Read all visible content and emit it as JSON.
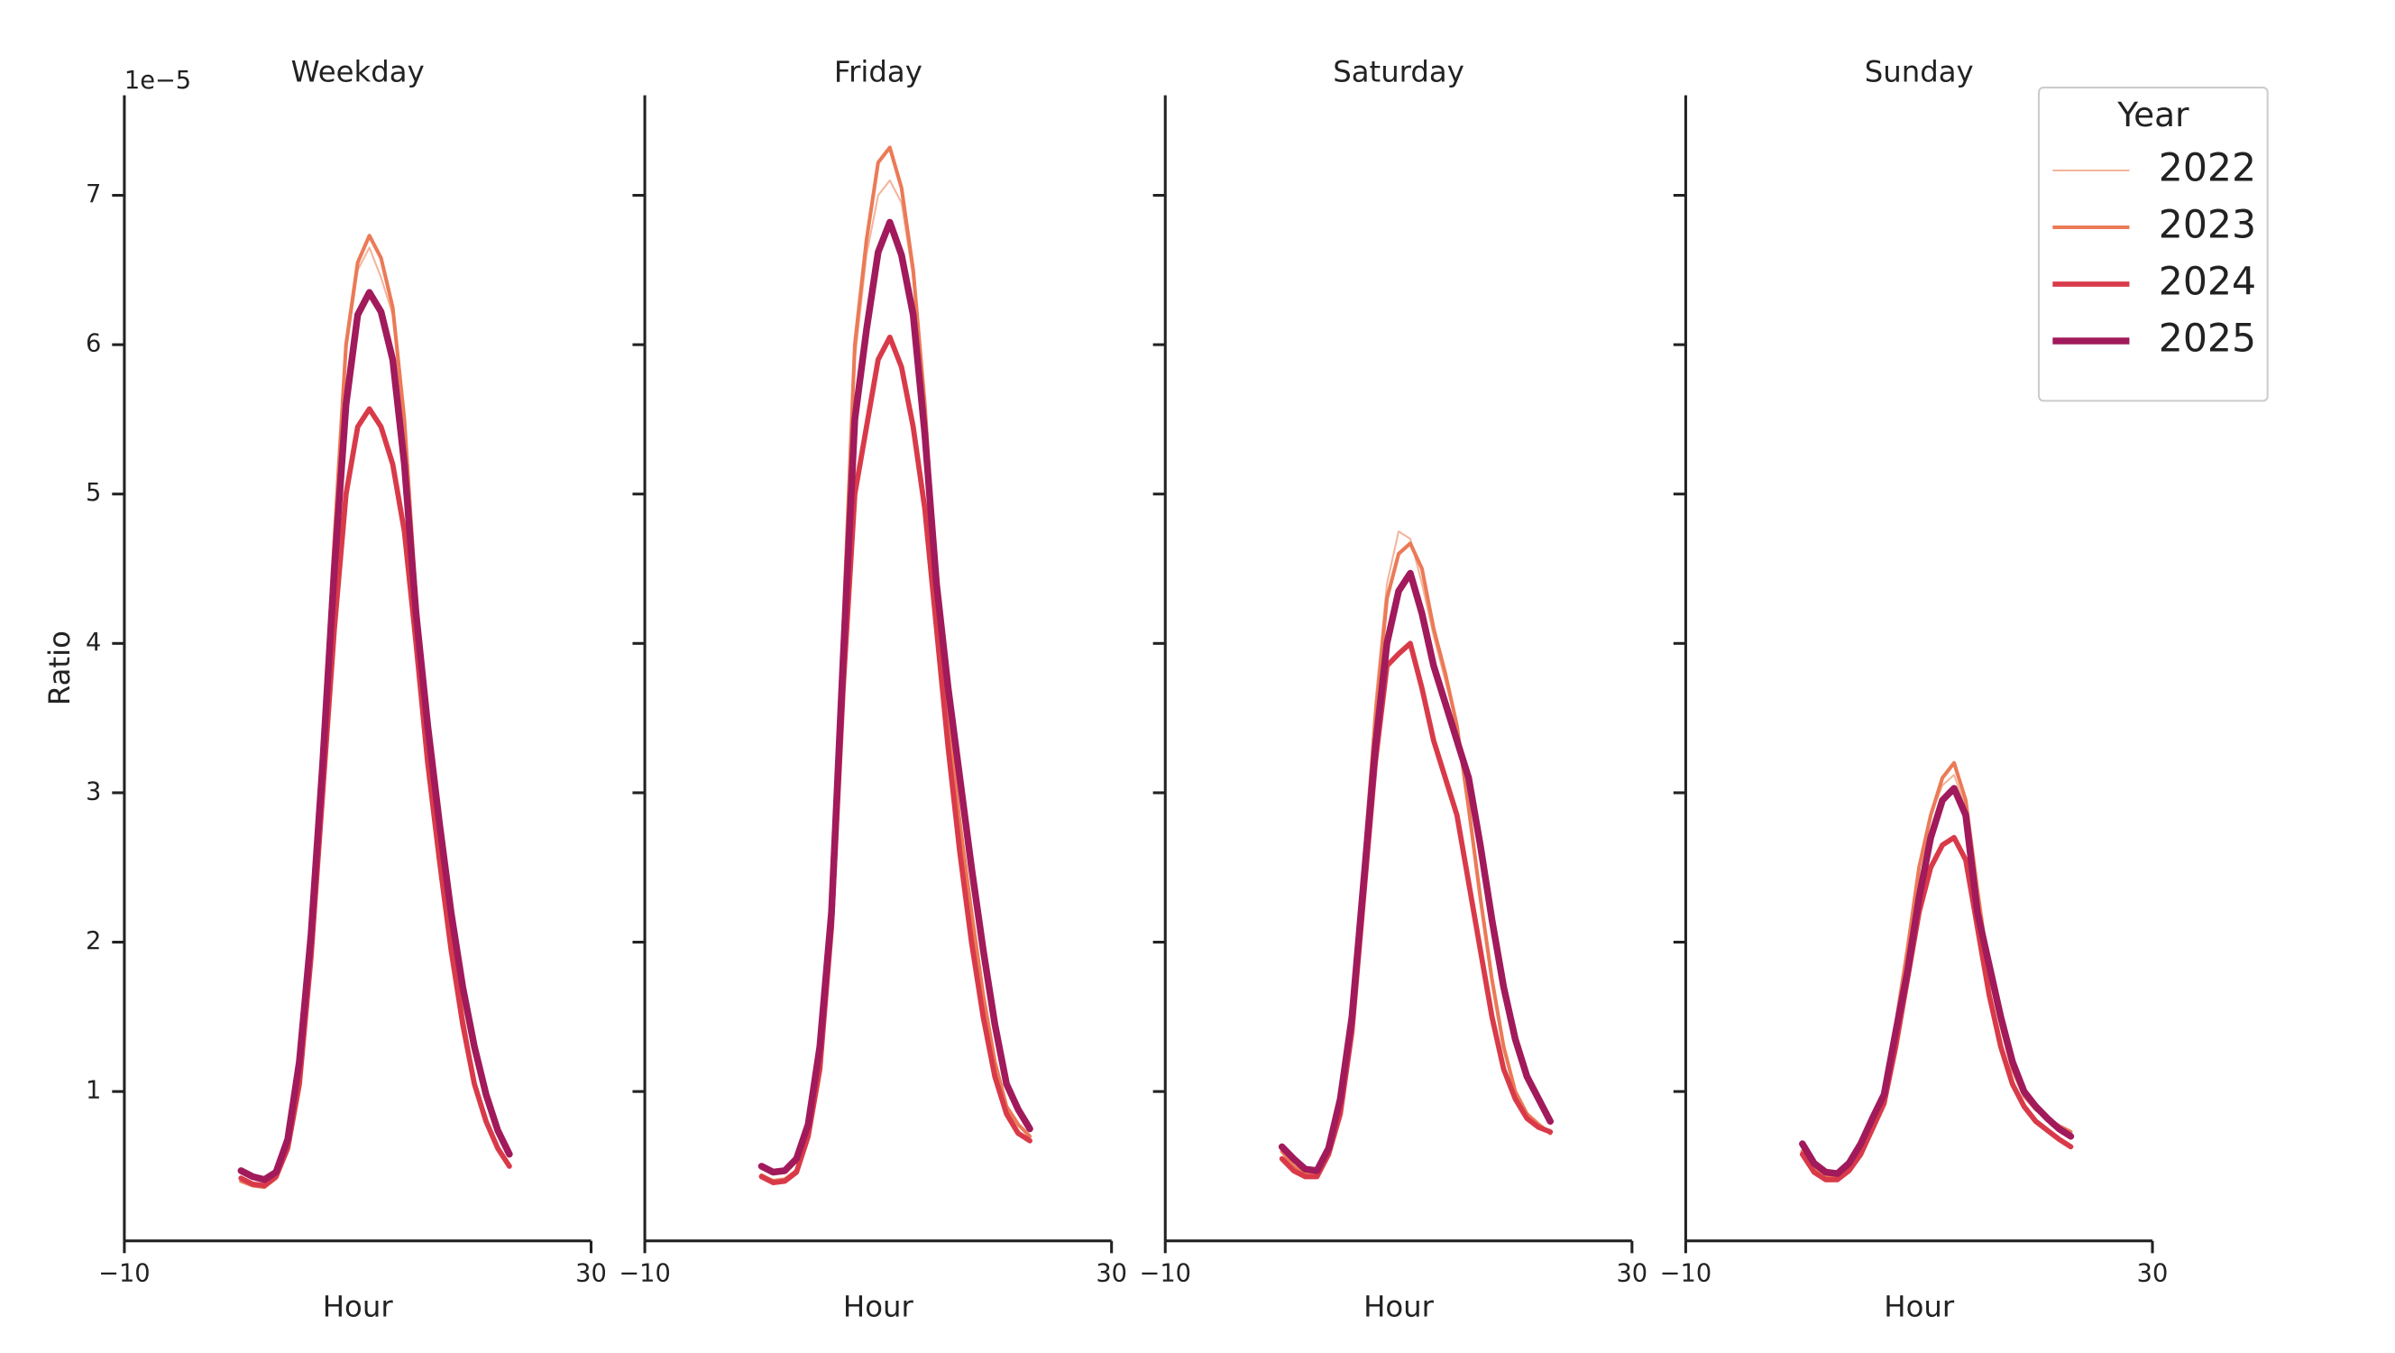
{
  "chart_data": [
    {
      "type": "line",
      "title": "Weekday",
      "xlabel": "Hour",
      "ylabel": "Ratio",
      "offset_text": "1e−5",
      "x": [
        0,
        1,
        2,
        3,
        4,
        5,
        6,
        7,
        8,
        9,
        10,
        11,
        12,
        13,
        14,
        15,
        16,
        17,
        18,
        19,
        20,
        21,
        22,
        23
      ],
      "xlim": [
        -10,
        30
      ],
      "xticks": [
        {
          "value": -10,
          "label": "−10"
        },
        30
      ],
      "ylim": [
        0,
        7.67
      ],
      "yticks": [
        1,
        2,
        3,
        4,
        5,
        6,
        7
      ],
      "ytick_labels": true,
      "series": [
        {
          "color": "#f4b49c",
          "linewidth": 1.2,
          "values": [
            0.41,
            0.38,
            0.37,
            0.43,
            0.63,
            1.1,
            2.0,
            3.3,
            4.6,
            5.95,
            6.5,
            6.65,
            6.45,
            6.2,
            5.45,
            4.3,
            3.4,
            2.7,
            2.05,
            1.5,
            1.05,
            0.8,
            0.62,
            0.5
          ]
        },
        {
          "color": "#eb7a57",
          "linewidth": 2.4,
          "values": [
            0.4,
            0.37,
            0.36,
            0.42,
            0.62,
            1.1,
            2.0,
            3.3,
            4.7,
            6.0,
            6.55,
            6.73,
            6.58,
            6.25,
            5.5,
            4.3,
            3.4,
            2.7,
            2.05,
            1.5,
            1.05,
            0.8,
            0.62,
            0.5
          ]
        },
        {
          "color": "#d93a49",
          "linewidth": 3.4,
          "values": [
            0.42,
            0.38,
            0.37,
            0.43,
            0.62,
            1.05,
            1.9,
            3.0,
            4.1,
            5.0,
            5.45,
            5.57,
            5.45,
            5.2,
            4.75,
            4.0,
            3.2,
            2.55,
            1.95,
            1.45,
            1.05,
            0.8,
            0.62,
            0.5
          ]
        },
        {
          "color": "#a11a5b",
          "linewidth": 4.4,
          "values": [
            0.47,
            0.43,
            0.41,
            0.46,
            0.68,
            1.2,
            2.05,
            3.2,
            4.5,
            5.6,
            6.2,
            6.35,
            6.22,
            5.9,
            5.2,
            4.2,
            3.45,
            2.8,
            2.2,
            1.7,
            1.3,
            0.98,
            0.74,
            0.58
          ]
        }
      ]
    },
    {
      "type": "line",
      "title": "Friday",
      "xlabel": "Hour",
      "x": [
        0,
        1,
        2,
        3,
        4,
        5,
        6,
        7,
        8,
        9,
        10,
        11,
        12,
        13,
        14,
        15,
        16,
        17,
        18,
        19,
        20,
        21,
        22,
        23
      ],
      "xlim": [
        -10,
        30
      ],
      "xticks": [
        {
          "value": -10,
          "label": "−10"
        },
        30
      ],
      "ylim": [
        0,
        7.67
      ],
      "yticks": [
        1,
        2,
        3,
        4,
        5,
        6,
        7
      ],
      "ytick_labels": false,
      "series": [
        {
          "color": "#f4b49c",
          "linewidth": 1.2,
          "values": [
            0.44,
            0.41,
            0.42,
            0.48,
            0.72,
            1.25,
            2.3,
            4.0,
            5.9,
            6.6,
            7.0,
            7.1,
            6.95,
            6.45,
            5.6,
            4.4,
            3.5,
            2.8,
            2.2,
            1.65,
            1.2,
            0.9,
            0.78,
            0.7
          ]
        },
        {
          "color": "#eb7a57",
          "linewidth": 2.4,
          "values": [
            0.44,
            0.4,
            0.41,
            0.47,
            0.72,
            1.25,
            2.3,
            4.1,
            6.0,
            6.7,
            7.22,
            7.32,
            7.05,
            6.5,
            5.6,
            4.4,
            3.5,
            2.8,
            2.2,
            1.65,
            1.2,
            0.9,
            0.78,
            0.7
          ]
        },
        {
          "color": "#d93a49",
          "linewidth": 3.4,
          "values": [
            0.43,
            0.39,
            0.4,
            0.46,
            0.7,
            1.15,
            2.1,
            3.7,
            5.0,
            5.45,
            5.9,
            6.05,
            5.85,
            5.45,
            4.9,
            4.1,
            3.3,
            2.6,
            2.0,
            1.5,
            1.1,
            0.85,
            0.72,
            0.67
          ]
        },
        {
          "color": "#a11a5b",
          "linewidth": 4.4,
          "values": [
            0.5,
            0.46,
            0.47,
            0.55,
            0.78,
            1.3,
            2.2,
            3.9,
            5.5,
            6.1,
            6.62,
            6.82,
            6.6,
            6.2,
            5.4,
            4.4,
            3.7,
            3.1,
            2.5,
            1.95,
            1.45,
            1.05,
            0.88,
            0.75
          ]
        }
      ]
    },
    {
      "type": "line",
      "title": "Saturday",
      "xlabel": "Hour",
      "x": [
        0,
        1,
        2,
        3,
        4,
        5,
        6,
        7,
        8,
        9,
        10,
        11,
        12,
        13,
        14,
        15,
        16,
        17,
        18,
        19,
        20,
        21,
        22,
        23
      ],
      "xlim": [
        -10,
        30
      ],
      "xticks": [
        {
          "value": -10,
          "label": "−10"
        },
        30
      ],
      "ylim": [
        0,
        7.67
      ],
      "yticks": [
        1,
        2,
        3,
        4,
        5,
        6,
        7
      ],
      "ytick_labels": false,
      "series": [
        {
          "color": "#f4b49c",
          "linewidth": 1.2,
          "values": [
            0.6,
            0.5,
            0.45,
            0.45,
            0.6,
            0.9,
            1.5,
            2.5,
            3.6,
            4.4,
            4.75,
            4.7,
            4.4,
            4.05,
            3.75,
            3.45,
            2.9,
            2.3,
            1.75,
            1.3,
            1.0,
            0.85,
            0.78,
            0.72
          ]
        },
        {
          "color": "#eb7a57",
          "linewidth": 2.4,
          "values": [
            0.6,
            0.5,
            0.45,
            0.45,
            0.6,
            0.9,
            1.5,
            2.5,
            3.5,
            4.3,
            4.6,
            4.67,
            4.5,
            4.1,
            3.8,
            3.45,
            2.9,
            2.3,
            1.75,
            1.3,
            1.0,
            0.85,
            0.78,
            0.72
          ]
        },
        {
          "color": "#d93a49",
          "linewidth": 3.4,
          "values": [
            0.55,
            0.47,
            0.43,
            0.43,
            0.58,
            0.85,
            1.4,
            2.3,
            3.2,
            3.85,
            3.93,
            4.0,
            3.7,
            3.35,
            3.1,
            2.85,
            2.4,
            1.95,
            1.5,
            1.15,
            0.95,
            0.82,
            0.76,
            0.73
          ]
        },
        {
          "color": "#a11a5b",
          "linewidth": 4.4,
          "values": [
            0.63,
            0.55,
            0.48,
            0.47,
            0.62,
            0.95,
            1.5,
            2.4,
            3.3,
            4.0,
            4.35,
            4.47,
            4.2,
            3.85,
            3.6,
            3.35,
            3.1,
            2.65,
            2.15,
            1.7,
            1.35,
            1.1,
            0.95,
            0.8
          ]
        }
      ]
    },
    {
      "type": "line",
      "title": "Sunday",
      "xlabel": "Hour",
      "x": [
        0,
        1,
        2,
        3,
        4,
        5,
        6,
        7,
        8,
        9,
        10,
        11,
        12,
        13,
        14,
        15,
        16,
        17,
        18,
        19,
        20,
        21,
        22,
        23
      ],
      "xlim": [
        -10,
        30
      ],
      "xticks": [
        {
          "value": -10,
          "label": "−10"
        },
        30
      ],
      "ylim": [
        0,
        7.67
      ],
      "yticks": [
        1,
        2,
        3,
        4,
        5,
        6,
        7
      ],
      "ytick_labels": false,
      "legend": {
        "title": "Year",
        "loc": "upper right"
      },
      "series": [
        {
          "name": "2022",
          "color": "#f4b49c",
          "linewidth": 1.2,
          "values": [
            0.6,
            0.48,
            0.43,
            0.42,
            0.48,
            0.6,
            0.78,
            0.95,
            1.45,
            1.95,
            2.5,
            2.85,
            3.05,
            3.12,
            2.9,
            2.3,
            1.8,
            1.45,
            1.15,
            0.97,
            0.88,
            0.82,
            0.77,
            0.73
          ]
        },
        {
          "name": "2023",
          "color": "#eb7a57",
          "linewidth": 2.4,
          "values": [
            0.6,
            0.48,
            0.43,
            0.42,
            0.48,
            0.6,
            0.78,
            0.95,
            1.45,
            1.95,
            2.5,
            2.85,
            3.1,
            3.2,
            2.95,
            2.35,
            1.8,
            1.45,
            1.15,
            0.97,
            0.88,
            0.82,
            0.77,
            0.73
          ]
        },
        {
          "name": "2024",
          "color": "#d93a49",
          "linewidth": 3.4,
          "values": [
            0.58,
            0.46,
            0.41,
            0.41,
            0.47,
            0.58,
            0.75,
            0.92,
            1.3,
            1.75,
            2.2,
            2.5,
            2.65,
            2.7,
            2.55,
            2.1,
            1.65,
            1.3,
            1.05,
            0.9,
            0.8,
            0.74,
            0.68,
            0.63
          ]
        },
        {
          "name": "2025",
          "color": "#a11a5b",
          "linewidth": 4.4,
          "values": [
            0.65,
            0.52,
            0.46,
            0.45,
            0.52,
            0.65,
            0.82,
            0.98,
            1.4,
            1.8,
            2.3,
            2.7,
            2.95,
            3.03,
            2.85,
            2.2,
            1.85,
            1.5,
            1.2,
            1.0,
            0.9,
            0.82,
            0.75,
            0.7
          ]
        }
      ]
    }
  ]
}
